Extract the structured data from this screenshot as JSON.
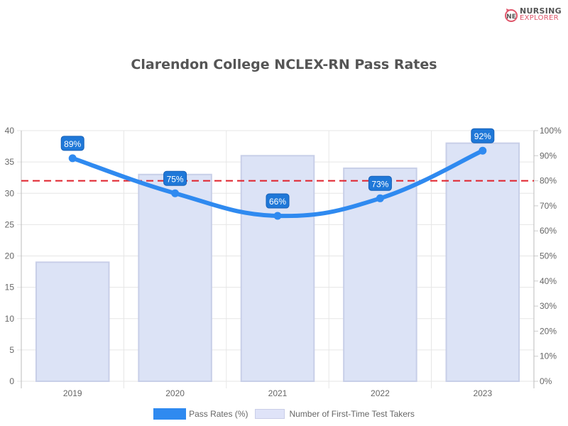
{
  "logo": {
    "line1": "NURSING",
    "line2": "EXPLORER",
    "icon": "nursing-explorer-logo-icon"
  },
  "title": "Clarendon College NCLEX-RN Pass Rates",
  "legend": {
    "pass_rates": "Pass Rates (%)",
    "test_takers": "Number of First-Time Test Takers"
  },
  "colors": {
    "line": "#2f8af0",
    "bars": "#dce3f6",
    "bar_border": "#c8cfe8",
    "benchmark": "#e0202a",
    "label_bg": "#1f78d8"
  },
  "chart_data": {
    "type": "bar+line",
    "title": "Clarendon College NCLEX-RN Pass Rates",
    "categories": [
      "2019",
      "2020",
      "2021",
      "2022",
      "2023"
    ],
    "series": [
      {
        "name": "Number of First-Time Test Takers",
        "type": "bar",
        "axis": "left",
        "values": [
          19,
          33,
          36,
          34,
          38
        ]
      },
      {
        "name": "Pass Rates (%)",
        "type": "line",
        "axis": "right",
        "values": [
          89,
          75,
          66,
          73,
          92
        ],
        "labels": [
          "89%",
          "75%",
          "66%",
          "73%",
          "92%"
        ]
      }
    ],
    "benchmark_line": {
      "axis": "right",
      "value": 80,
      "style": "dashed",
      "color": "#e0202a"
    },
    "left_axis": {
      "range": [
        0,
        40
      ],
      "ticks": [
        "0",
        "5",
        "10",
        "15",
        "20",
        "25",
        "30",
        "35",
        "40"
      ]
    },
    "right_axis": {
      "range": [
        0,
        100
      ],
      "ticks": [
        "0%",
        "10%",
        "20%",
        "30%",
        "40%",
        "50%",
        "60%",
        "70%",
        "80%",
        "90%",
        "100%"
      ]
    },
    "grid": true,
    "legend_position": "bottom"
  }
}
